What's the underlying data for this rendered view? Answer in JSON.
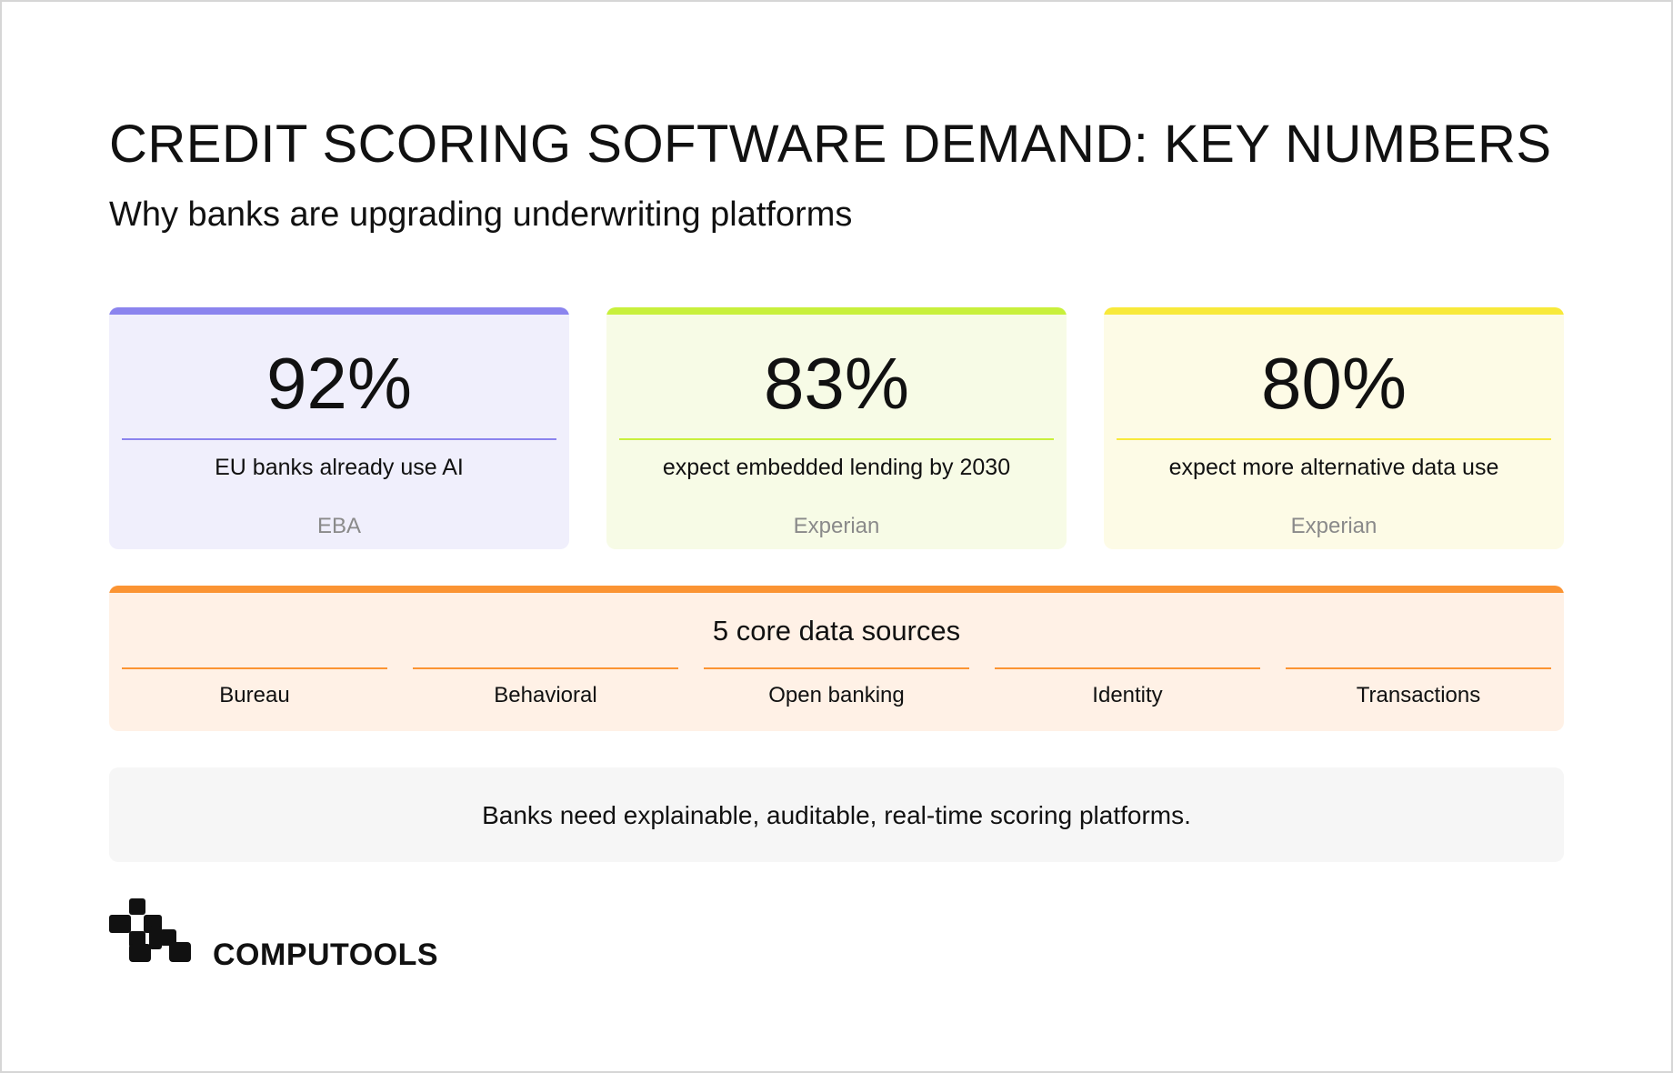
{
  "header": {
    "title": "CREDIT SCORING SOFTWARE DEMAND: KEY NUMBERS",
    "subtitle": "Why banks are upgrading underwriting platforms"
  },
  "stats": [
    {
      "value": "92%",
      "description": "EU banks already use AI",
      "source": "EBA",
      "accent": "#8b84ee",
      "background": "#f0effc"
    },
    {
      "value": "83%",
      "description": "expect embedded lending by 2030",
      "source": "Experian",
      "accent": "#c8f03c",
      "background": "#f7fbe6"
    },
    {
      "value": "80%",
      "description": "expect more alternative data use",
      "source": "Experian",
      "accent": "#f8e93a",
      "background": "#fdfbe6"
    }
  ],
  "data_sources": {
    "heading": "5 core data sources",
    "accent": "#fb9433",
    "items": [
      "Bureau",
      "Behavioral",
      "Open banking",
      "Identity",
      "Transactions"
    ]
  },
  "conclusion": {
    "text": "Banks need explainable, auditable, real-time scoring platforms."
  },
  "brand": {
    "name": "COMPUTOOLS",
    "icon": "computools-logo-icon"
  }
}
